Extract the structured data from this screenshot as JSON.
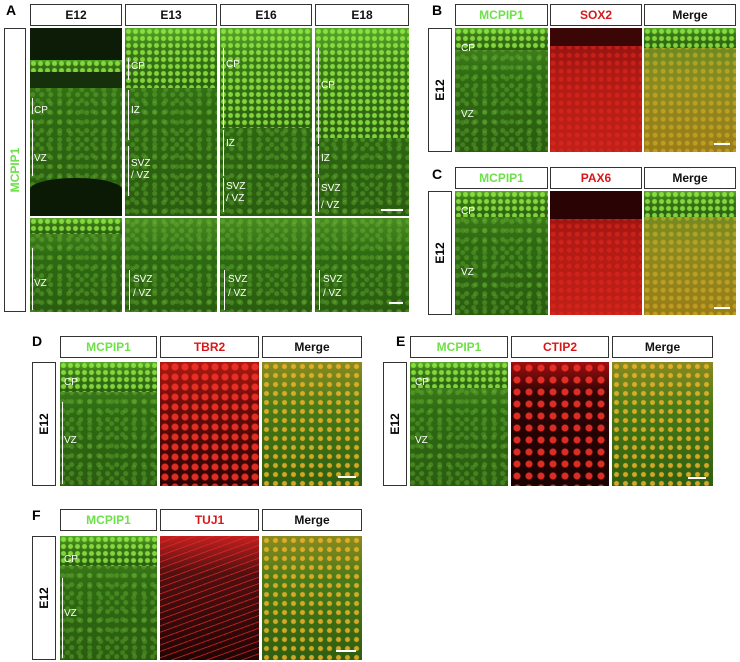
{
  "panels": {
    "A": {
      "letter": "A",
      "row_label": "MCPIP1",
      "headers": [
        "E12",
        "E13",
        "E16",
        "E18"
      ],
      "top_labels": {
        "e12": [
          "CP",
          "VZ"
        ],
        "e13": [
          "CP",
          "IZ",
          "SVZ",
          "/ VZ"
        ],
        "e16": [
          "CP",
          "IZ",
          "SVZ",
          "/ VZ"
        ],
        "e18": [
          "CP",
          "IZ",
          "SVZ",
          "/ VZ"
        ]
      },
      "bottom_labels": {
        "e12": [
          "VZ"
        ],
        "e13": [
          "SVZ",
          "/ VZ"
        ],
        "e16": [
          "SVZ",
          "/ VZ"
        ],
        "e18": [
          "SVZ",
          "/ VZ"
        ]
      }
    },
    "B": {
      "letter": "B",
      "row_label": "E12",
      "headers": [
        "MCPIP1",
        "SOX2",
        "Merge"
      ],
      "labels": [
        "CP",
        "VZ"
      ]
    },
    "C": {
      "letter": "C",
      "row_label": "E12",
      "headers": [
        "MCPIP1",
        "PAX6",
        "Merge"
      ],
      "labels": [
        "CP",
        "VZ"
      ]
    },
    "D": {
      "letter": "D",
      "row_label": "E12",
      "headers": [
        "MCPIP1",
        "TBR2",
        "Merge"
      ],
      "labels": [
        "CP",
        "VZ"
      ]
    },
    "E": {
      "letter": "E",
      "row_label": "E12",
      "headers": [
        "MCPIP1",
        "CTIP2",
        "Merge"
      ],
      "labels": [
        "CP",
        "VZ"
      ]
    },
    "F": {
      "letter": "F",
      "row_label": "E12",
      "headers": [
        "MCPIP1",
        "TUJ1",
        "Merge"
      ],
      "labels": [
        "CP",
        "VZ"
      ]
    }
  },
  "colors": {
    "green_label": "#6ee04a",
    "red_label": "#d81818"
  }
}
